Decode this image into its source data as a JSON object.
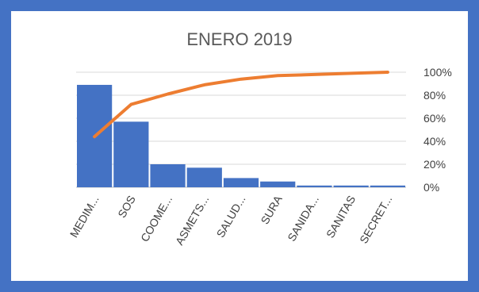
{
  "chart_data": {
    "type": "bar",
    "title": "ENERO 2019",
    "categories": [
      "MEDIM...",
      "SOS",
      "COOME...",
      "ASMETS...",
      "SALUD...",
      "SURA",
      "SANIDA...",
      "SANITAS",
      "SECRET..."
    ],
    "series": [
      {
        "type": "bar",
        "values": [
          89,
          57,
          20,
          17,
          8,
          5,
          1.5,
          1.5,
          1.5
        ]
      },
      {
        "type": "line",
        "axis": "secondary",
        "values": [
          44,
          72,
          81,
          89,
          94,
          97,
          98,
          99,
          100
        ]
      }
    ],
    "ylim": [
      0,
      100
    ],
    "y2lim": [
      0,
      100
    ],
    "y2_ticks": [
      "0%",
      "20%",
      "40%",
      "60%",
      "80%",
      "100%"
    ],
    "grid": true,
    "legend": "none",
    "colors": {
      "bar": "#4472c4",
      "line": "#ed7d31",
      "frame": "#4472c4"
    }
  }
}
